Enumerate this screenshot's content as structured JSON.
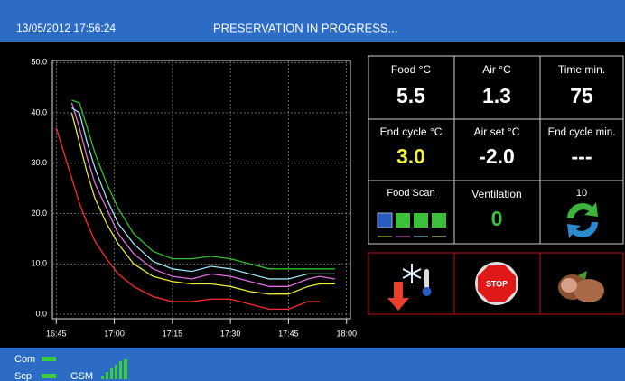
{
  "header": {
    "datetime": "13/05/2012 17:56:24",
    "status": "PRESERVATION IN PROGRESS..."
  },
  "chart_data": {
    "type": "line",
    "x": [
      1005,
      1007,
      1009,
      1011,
      1013,
      1015,
      1018,
      1021,
      1025,
      1030,
      1035,
      1040,
      1045,
      1050,
      1055,
      1060,
      1065,
      1070,
      1073,
      1077
    ],
    "series": [
      {
        "color": "#ff2a2a",
        "values": [
          37,
          32,
          27,
          22,
          18,
          14.5,
          11,
          8,
          5.5,
          3.5,
          2.5,
          2.5,
          3,
          3,
          2,
          1,
          1,
          2.5,
          2.5,
          null
        ]
      },
      {
        "color": "#e8e83a",
        "values": [
          null,
          null,
          40,
          34,
          28,
          23,
          18,
          14,
          10,
          7.5,
          6.5,
          6,
          6,
          5.5,
          4.5,
          4,
          4,
          5.5,
          6,
          6
        ]
      },
      {
        "color": "#e070e0",
        "values": [
          null,
          null,
          42,
          37,
          31,
          26,
          21,
          16,
          12,
          9,
          7.5,
          7,
          8,
          7.5,
          6.5,
          5.5,
          5.5,
          7,
          7.5,
          7
        ]
      },
      {
        "color": "#9ae0f0",
        "values": [
          null,
          null,
          41,
          40,
          34,
          29,
          23,
          18,
          14,
          10.5,
          9,
          8.5,
          9.5,
          9,
          8,
          7,
          7,
          8,
          8,
          8
        ]
      },
      {
        "color": "#30c030",
        "values": [
          null,
          null,
          42.5,
          42,
          37,
          32,
          26,
          21,
          16,
          12.5,
          11,
          11,
          11.5,
          11,
          10,
          9,
          9,
          9,
          9,
          9
        ]
      }
    ],
    "xlim": [
      1004,
      1081
    ],
    "xticks": [
      {
        "value": 1005,
        "label": "16:45"
      },
      {
        "value": 1020,
        "label": "17:00"
      },
      {
        "value": 1035,
        "label": "17:15"
      },
      {
        "value": 1050,
        "label": "17:30"
      },
      {
        "value": 1065,
        "label": "17:45"
      },
      {
        "value": 1080,
        "label": "18:00"
      }
    ],
    "ylim": [
      -0.9,
      50.4
    ],
    "yticks": [
      {
        "value": 0,
        "label": "0.0"
      },
      {
        "value": 10,
        "label": "10.0"
      },
      {
        "value": 20,
        "label": "20.0"
      },
      {
        "value": 30,
        "label": "30.0"
      },
      {
        "value": 40,
        "label": "40.0"
      },
      {
        "value": 50,
        "label": "50.0"
      }
    ],
    "grid": true
  },
  "panel": {
    "food": {
      "label": "Food °C",
      "value": "5.5"
    },
    "air": {
      "label": "Air °C",
      "value": "1.3"
    },
    "time": {
      "label": "Time  min.",
      "value": "75"
    },
    "end_cycle_temp": {
      "label": "End cycle °C",
      "value": "3.0"
    },
    "air_set": {
      "label": "Air set °C",
      "value": "-2.0"
    },
    "end_cycle_min": {
      "label": "End cycle min.",
      "value": "---"
    },
    "food_scan": {
      "label": "Food Scan"
    },
    "ventilation": {
      "label": "Ventilation",
      "value": "0"
    },
    "cycle": {
      "value": "10"
    }
  },
  "buttons": {
    "stop": "STOP"
  },
  "status": {
    "com": "Com",
    "scp": "Scp",
    "gsm": "GSM"
  }
}
